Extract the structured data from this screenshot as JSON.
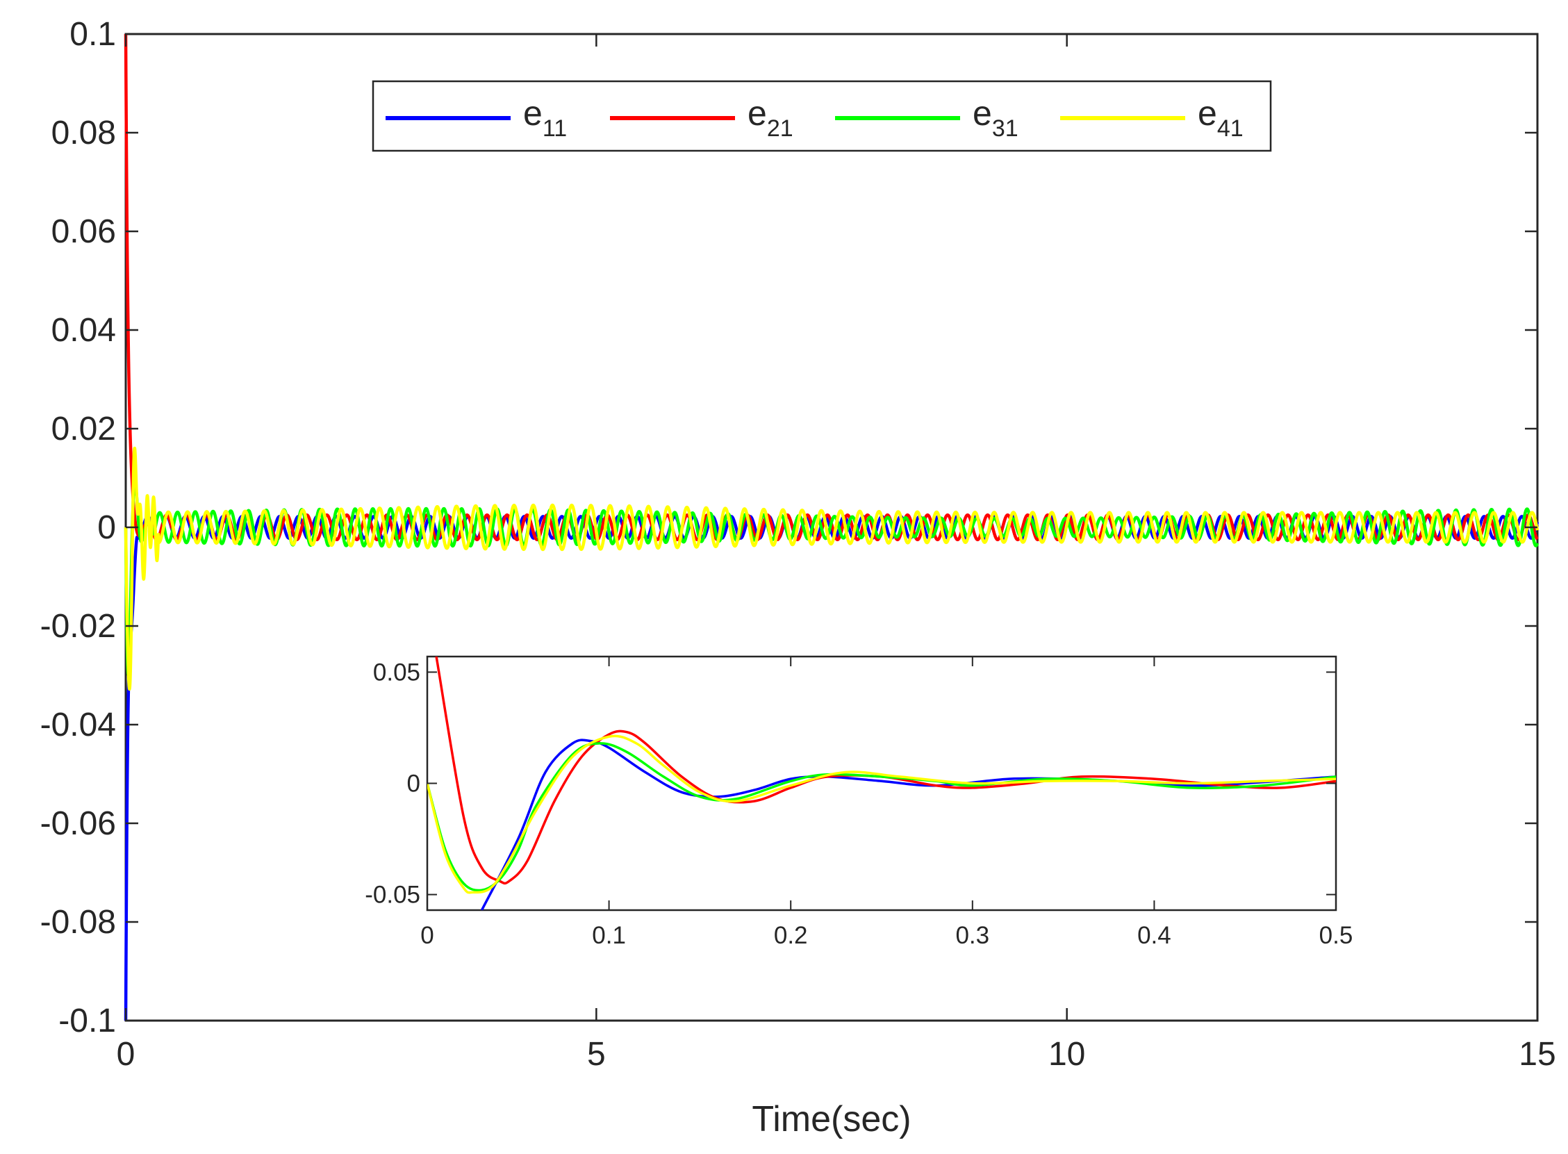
{
  "chart_data": [
    {
      "type": "line",
      "role": "main",
      "title": "",
      "xlabel": "Time(sec)",
      "ylabel": "",
      "xlim": [
        0,
        15
      ],
      "ylim": [
        -0.1,
        0.1
      ],
      "xticks": [
        0,
        5,
        10,
        15
      ],
      "xtick_labels": [
        "0",
        "5",
        "10",
        "15"
      ],
      "yticks": [
        0.1,
        0.08,
        0.06,
        0.04,
        0.02,
        0,
        -0.02,
        -0.04,
        -0.06,
        -0.08,
        -0.1
      ],
      "ytick_labels": [
        "0.1",
        "0.08",
        "0.06",
        "0.04",
        "0.02",
        "0",
        "-0.02",
        "-0.04",
        "-0.06",
        "-0.08",
        "-0.1"
      ],
      "grid": false,
      "legend_position": "top-center",
      "series": [
        {
          "name": "e11",
          "base": "e",
          "sub": "11",
          "color": "#0000ff",
          "description": "starts near -0.1 at t=0, decays quickly, then small oscillation about 0 with amplitude ~0.003"
        },
        {
          "name": "e21",
          "base": "e",
          "sub": "21",
          "color": "#ff0000",
          "description": "starts near 0.1 at t=0, overshoots to ~0.023, then small oscillation about 0 with amplitude ~0.003"
        },
        {
          "name": "e31",
          "base": "e",
          "sub": "31",
          "color": "#00ff00",
          "description": "starts at 0, dips to ~-0.05, then small oscillation about 0 with amplitude ~0.003-0.004"
        },
        {
          "name": "e41",
          "base": "e",
          "sub": "41",
          "color": "#ffff00",
          "description": "starts at 0, dips to ~-0.05, peaks ~0.022, then small oscillation about 0 with amplitude ~0.003-0.005"
        }
      ]
    },
    {
      "type": "line",
      "role": "inset-zoom",
      "title": "",
      "xlabel": "",
      "ylabel": "",
      "xlim": [
        0,
        0.5
      ],
      "ylim": [
        -0.057,
        0.057
      ],
      "xticks": [
        0,
        0.1,
        0.2,
        0.3,
        0.4,
        0.5
      ],
      "xtick_labels": [
        "0",
        "0.1",
        "0.2",
        "0.3",
        "0.4",
        "0.5"
      ],
      "yticks": [
        0.05,
        0,
        -0.05
      ],
      "ytick_labels": [
        "0.05",
        "0",
        "-0.05"
      ],
      "grid": false,
      "series": [
        {
          "name": "e11",
          "color": "#0000ff",
          "x": [
            0.03,
            0.05,
            0.065,
            0.08,
            0.09,
            0.1,
            0.12,
            0.14,
            0.16,
            0.18,
            0.2,
            0.22,
            0.25,
            0.28,
            0.32,
            0.35,
            0.38,
            0.42,
            0.45,
            0.5
          ],
          "y": [
            -0.057,
            -0.025,
            0.005,
            0.018,
            0.019,
            0.016,
            0.005,
            -0.004,
            -0.006,
            -0.003,
            0.002,
            0.003,
            0.001,
            -0.001,
            0.002,
            0.002,
            0.001,
            -0.001,
            0.0,
            0.003
          ]
        },
        {
          "name": "e21",
          "color": "#ff0000",
          "x": [
            0.005,
            0.02,
            0.03,
            0.04,
            0.045,
            0.055,
            0.07,
            0.085,
            0.1,
            0.11,
            0.12,
            0.14,
            0.16,
            0.18,
            0.2,
            0.22,
            0.25,
            0.28,
            0.3,
            0.33,
            0.36,
            0.4,
            0.44,
            0.47,
            0.5
          ],
          "y": [
            0.057,
            -0.015,
            -0.038,
            -0.044,
            -0.044,
            -0.035,
            -0.008,
            0.012,
            0.022,
            0.023,
            0.018,
            0.003,
            -0.007,
            -0.008,
            -0.002,
            0.003,
            0.003,
            -0.001,
            -0.002,
            0.0,
            0.003,
            0.002,
            -0.001,
            -0.002,
            0.001
          ]
        },
        {
          "name": "e31",
          "color": "#00ff00",
          "x": [
            0,
            0.01,
            0.02,
            0.03,
            0.04,
            0.05,
            0.06,
            0.08,
            0.095,
            0.11,
            0.13,
            0.15,
            0.17,
            0.2,
            0.22,
            0.25,
            0.28,
            0.3,
            0.34,
            0.38,
            0.42,
            0.46,
            0.5
          ],
          "y": [
            0.0,
            -0.03,
            -0.045,
            -0.048,
            -0.043,
            -0.03,
            -0.01,
            0.013,
            0.018,
            0.014,
            0.003,
            -0.006,
            -0.007,
            0.001,
            0.004,
            0.003,
            0.001,
            -0.001,
            0.002,
            0.001,
            -0.002,
            -0.001,
            0.003
          ]
        },
        {
          "name": "e41",
          "color": "#ffff00",
          "x": [
            0,
            0.01,
            0.02,
            0.025,
            0.035,
            0.045,
            0.06,
            0.08,
            0.1,
            0.115,
            0.13,
            0.15,
            0.17,
            0.2,
            0.23,
            0.26,
            0.3,
            0.34,
            0.38,
            0.42,
            0.46,
            0.5
          ],
          "y": [
            0.0,
            -0.032,
            -0.047,
            -0.049,
            -0.047,
            -0.035,
            -0.012,
            0.012,
            0.021,
            0.018,
            0.008,
            -0.004,
            -0.008,
            -0.001,
            0.005,
            0.003,
            0.0,
            0.001,
            0.001,
            0.0,
            0.001,
            0.002
          ]
        }
      ]
    }
  ]
}
